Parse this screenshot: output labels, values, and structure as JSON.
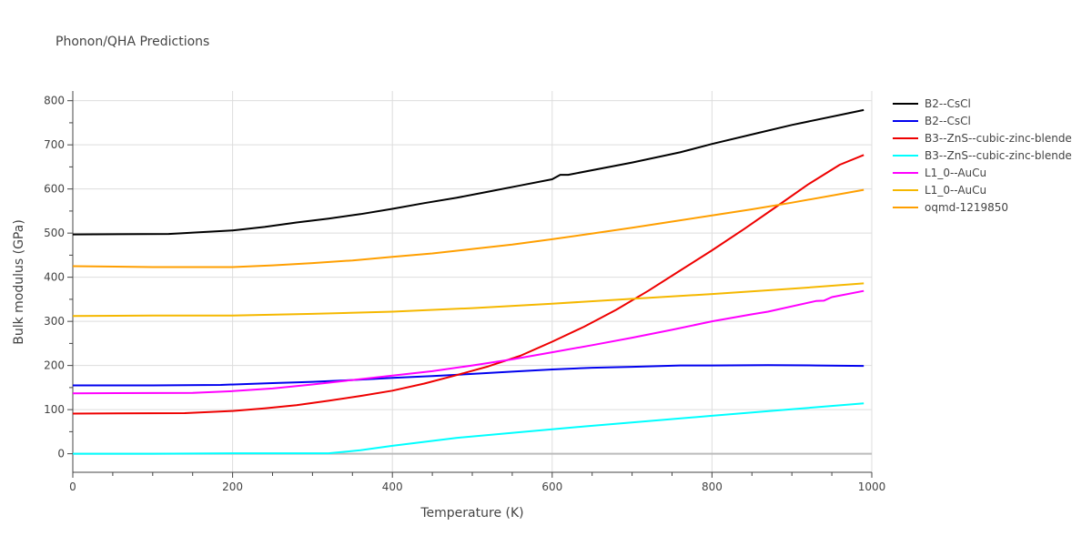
{
  "chart_data": {
    "type": "line",
    "title": "Phonon/QHA Predictions",
    "xlabel": "Temperature (K)",
    "ylabel": "Bulk modulus (GPa)",
    "xlim": [
      0,
      1000
    ],
    "ylim": [
      -42,
      822
    ],
    "xticks": [
      0,
      200,
      400,
      600,
      800,
      1000
    ],
    "yticks": [
      0,
      100,
      200,
      300,
      400,
      500,
      600,
      700,
      800
    ],
    "grid": true,
    "legend_position": "right",
    "series": [
      {
        "name": "B2--CsCl",
        "color": "#000000",
        "x": [
          0,
          120,
          200,
          240,
          280,
          320,
          360,
          400,
          440,
          480,
          520,
          560,
          600,
          610,
          620,
          700,
          760,
          800,
          860,
          900,
          990
        ],
        "y": [
          497,
          498,
          506,
          514,
          524,
          533,
          543,
          555,
          568,
          580,
          594,
          608,
          622,
          632,
          632,
          660,
          683,
          702,
          728,
          745,
          779
        ]
      },
      {
        "name": "B2--CsCl",
        "color": "#0000ee",
        "x": [
          0,
          100,
          185,
          250,
          300,
          350,
          400,
          450,
          500,
          550,
          600,
          650,
          700,
          760,
          800,
          870,
          930,
          990
        ],
        "y": [
          155,
          155,
          156,
          160,
          163,
          167,
          172,
          176,
          181,
          186,
          191,
          195,
          197,
          200,
          200,
          201,
          200,
          199
        ]
      },
      {
        "name": "B3--ZnS--cubic-zinc-blende",
        "color": "#ee0000",
        "x": [
          0,
          140,
          200,
          240,
          280,
          320,
          360,
          400,
          440,
          480,
          520,
          560,
          600,
          640,
          680,
          720,
          760,
          800,
          840,
          880,
          920,
          960,
          990
        ],
        "y": [
          91,
          92,
          97,
          103,
          110,
          120,
          131,
          143,
          159,
          178,
          198,
          222,
          254,
          288,
          326,
          369,
          415,
          461,
          509,
          559,
          610,
          655,
          677
        ]
      },
      {
        "name": "B3--ZnS--cubic-zinc-blende",
        "color": "#00ffff",
        "x": [
          0,
          100,
          200,
          320,
          360,
          400,
          480,
          560,
          640,
          720,
          800,
          880,
          990
        ],
        "y": [
          0,
          0,
          1,
          1,
          8,
          18,
          36,
          49,
          62,
          74,
          86,
          98,
          114
        ]
      },
      {
        "name": "L1_0--AuCu",
        "color": "#ff00ff",
        "x": [
          0,
          150,
          200,
          250,
          300,
          350,
          400,
          450,
          500,
          550,
          600,
          650,
          700,
          750,
          800,
          850,
          870,
          930,
          940,
          950,
          990
        ],
        "y": [
          137,
          138,
          142,
          148,
          157,
          167,
          177,
          187,
          200,
          214,
          230,
          246,
          263,
          281,
          300,
          316,
          322,
          346,
          347,
          355,
          369
        ]
      },
      {
        "name": "L1_0--AuCu",
        "color": "#f5b800",
        "x": [
          0,
          100,
          200,
          300,
          400,
          500,
          600,
          700,
          800,
          900,
          990
        ],
        "y": [
          312,
          313,
          313,
          317,
          322,
          330,
          340,
          351,
          362,
          374,
          386
        ]
      },
      {
        "name": "oqmd-1219850",
        "color": "#ff9f00",
        "x": [
          0,
          100,
          200,
          250,
          300,
          350,
          400,
          450,
          500,
          550,
          600,
          650,
          700,
          750,
          800,
          850,
          900,
          990
        ],
        "y": [
          425,
          423,
          423,
          427,
          432,
          438,
          446,
          454,
          464,
          474,
          486,
          499,
          512,
          526,
          540,
          554,
          569,
          598
        ]
      }
    ]
  }
}
